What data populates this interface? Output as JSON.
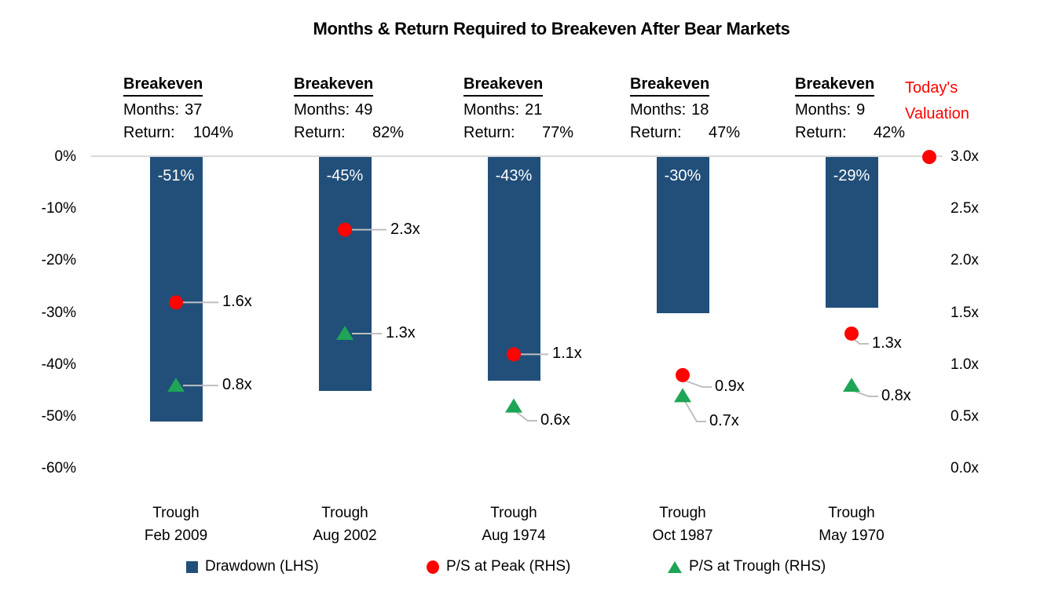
{
  "colors": {
    "bar": "#214F7A",
    "ps_peak": "#FE0400",
    "ps_trough": "#1EA556",
    "axis_line": "#D9D9D9",
    "leader_line": "#BFBFBF",
    "todays_valuation_text": "#FF0000",
    "bar_label_text": "#FFFFFF"
  },
  "chart_data": {
    "type": "bar",
    "title": "Months & Return Required to Breakeven After Bear Markets",
    "annotation_heading": "Breakeven",
    "months_label": "Months:",
    "return_label": "Return:",
    "left_axis": {
      "ticks": [
        "0%",
        "-10%",
        "-20%",
        "-30%",
        "-40%",
        "-50%",
        "-60%"
      ],
      "range": [
        0,
        -60
      ],
      "unit": "percent"
    },
    "right_axis": {
      "ticks": [
        "3.0x",
        "2.5x",
        "2.0x",
        "1.5x",
        "1.0x",
        "0.5x",
        "0.0x"
      ],
      "range": [
        3.0,
        0.0
      ],
      "unit": "price-to-sales multiple"
    },
    "categories": [
      {
        "x_label_line1": "Trough",
        "x_label_line2": "Feb 2009",
        "breakeven_months": "37",
        "breakeven_return": "104%",
        "drawdown": -51,
        "drawdown_label": "-51%",
        "ps_peak": 1.6,
        "ps_peak_label": "1.6x",
        "ps_trough": 0.8,
        "ps_trough_label": "0.8x"
      },
      {
        "x_label_line1": "Trough",
        "x_label_line2": "Aug 2002",
        "breakeven_months": "49",
        "breakeven_return": "82%",
        "drawdown": -45,
        "drawdown_label": "-45%",
        "ps_peak": 2.3,
        "ps_peak_label": "2.3x",
        "ps_trough": 1.3,
        "ps_trough_label": "1.3x"
      },
      {
        "x_label_line1": "Trough",
        "x_label_line2": "Aug 1974",
        "breakeven_months": "21",
        "breakeven_return": "77%",
        "drawdown": -43,
        "drawdown_label": "-43%",
        "ps_peak": 1.1,
        "ps_peak_label": "1.1x",
        "ps_trough": 0.6,
        "ps_trough_label": "0.6x"
      },
      {
        "x_label_line1": "Trough",
        "x_label_line2": "Oct 1987",
        "breakeven_months": "18",
        "breakeven_return": "47%",
        "drawdown": -30,
        "drawdown_label": "-30%",
        "ps_peak": 0.9,
        "ps_peak_label": "0.9x",
        "ps_trough": 0.7,
        "ps_trough_label": "0.7x"
      },
      {
        "x_label_line1": "Trough",
        "x_label_line2": "May 1970",
        "breakeven_months": "9",
        "breakeven_return": "42%",
        "drawdown": -29,
        "drawdown_label": "-29%",
        "ps_peak": 1.3,
        "ps_peak_label": "1.3x",
        "ps_trough": 0.8,
        "ps_trough_label": "0.8x"
      }
    ],
    "todays_valuation": {
      "label_line1": "Today's",
      "label_line2": "Valuation",
      "value": 3.0,
      "axis": "right"
    },
    "legend": [
      {
        "marker": "square",
        "label": "Drawdown (LHS)"
      },
      {
        "marker": "circle",
        "label": "P/S at Peak (RHS)"
      },
      {
        "marker": "triangle",
        "label": "P/S at Trough (RHS)"
      }
    ]
  }
}
